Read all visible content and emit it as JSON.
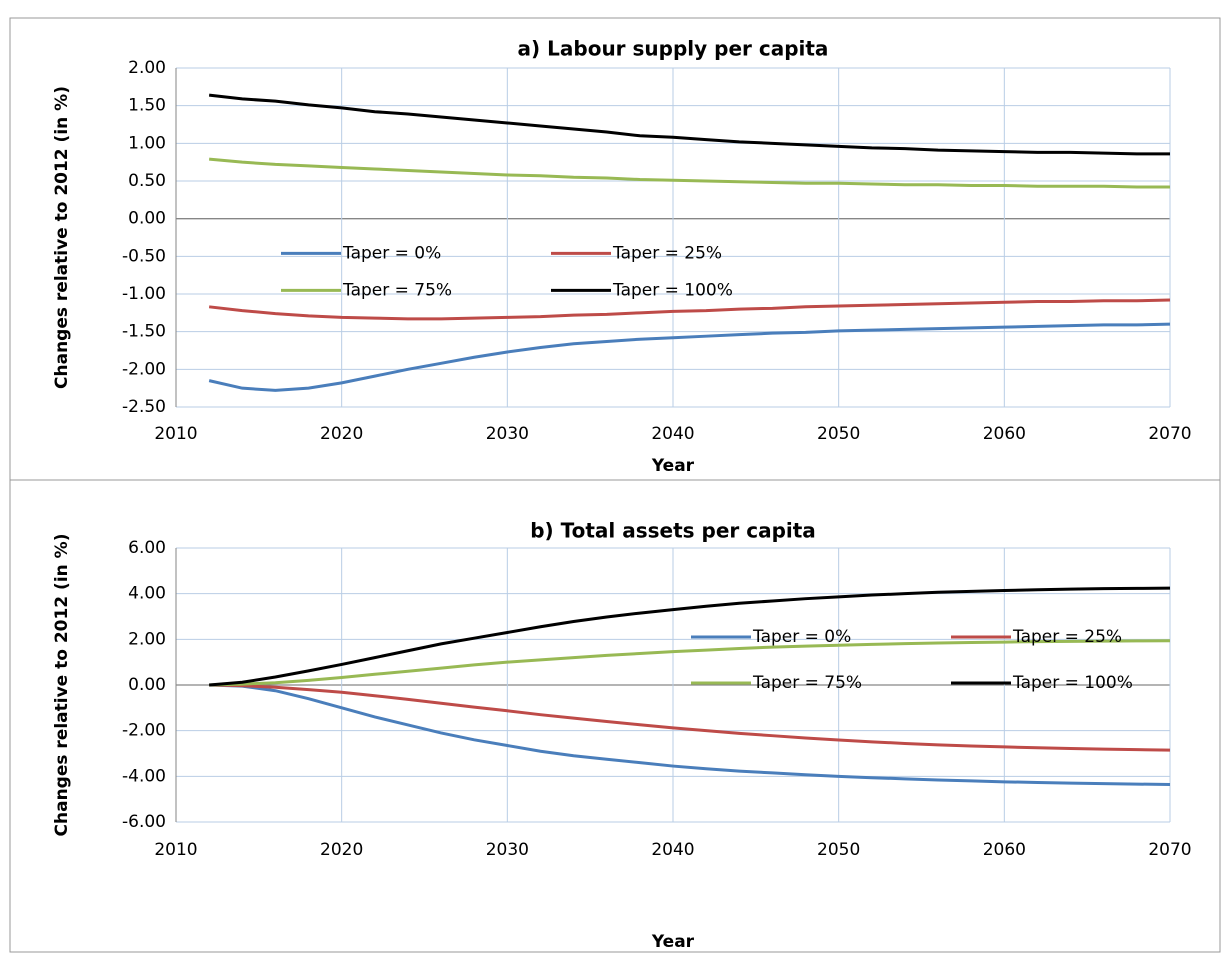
{
  "chart_data": [
    {
      "type": "line",
      "title": "a) Labour supply per capita",
      "x_label": "Year",
      "y_label": "Changes relative to 2012 (in %)",
      "x": [
        2012,
        2014,
        2016,
        2018,
        2020,
        2022,
        2024,
        2026,
        2028,
        2030,
        2032,
        2034,
        2036,
        2038,
        2040,
        2042,
        2044,
        2046,
        2048,
        2050,
        2052,
        2054,
        2056,
        2058,
        2060,
        2062,
        2064,
        2066,
        2068,
        2070
      ],
      "xlim": [
        2010,
        2070
      ],
      "xticks": [
        2010,
        2020,
        2030,
        2040,
        2050,
        2060,
        2070
      ],
      "ylim": [
        -2.5,
        2
      ],
      "yticks": [
        {
          "value": -2.5,
          "label": "-2.50"
        },
        {
          "value": -2,
          "label": "-2.00"
        },
        {
          "value": -1.5,
          "label": "-1.50"
        },
        {
          "value": -1,
          "label": "-1.00"
        },
        {
          "value": -0.5,
          "label": "-0.50"
        },
        {
          "value": 0,
          "label": "0.00"
        },
        {
          "value": 0.5,
          "label": "0.50"
        },
        {
          "value": 1,
          "label": "1.00"
        },
        {
          "value": 1.5,
          "label": "1.50"
        },
        {
          "value": 2,
          "label": "2.00"
        }
      ],
      "grid": true,
      "legend": "center",
      "series": [
        {
          "name": "Taper = 0%",
          "color": "#4a7ebb",
          "values": [
            -2.15,
            -2.25,
            -2.28,
            -2.25,
            -2.18,
            -2.09,
            -2.0,
            -1.92,
            -1.84,
            -1.77,
            -1.71,
            -1.66,
            -1.63,
            -1.6,
            -1.58,
            -1.56,
            -1.54,
            -1.52,
            -1.51,
            -1.49,
            -1.48,
            -1.47,
            -1.46,
            -1.45,
            -1.44,
            -1.43,
            -1.42,
            -1.41,
            -1.41,
            -1.4
          ]
        },
        {
          "name": "Taper = 25%",
          "color": "#be4b48",
          "values": [
            -1.17,
            -1.22,
            -1.26,
            -1.29,
            -1.31,
            -1.32,
            -1.33,
            -1.33,
            -1.32,
            -1.31,
            -1.3,
            -1.28,
            -1.27,
            -1.25,
            -1.23,
            -1.22,
            -1.2,
            -1.19,
            -1.17,
            -1.16,
            -1.15,
            -1.14,
            -1.13,
            -1.12,
            -1.11,
            -1.1,
            -1.1,
            -1.09,
            -1.09,
            -1.08
          ]
        },
        {
          "name": "Taper = 75%",
          "color": "#98b954",
          "values": [
            0.79,
            0.75,
            0.72,
            0.7,
            0.68,
            0.66,
            0.64,
            0.62,
            0.6,
            0.58,
            0.57,
            0.55,
            0.54,
            0.52,
            0.51,
            0.5,
            0.49,
            0.48,
            0.47,
            0.47,
            0.46,
            0.45,
            0.45,
            0.44,
            0.44,
            0.43,
            0.43,
            0.43,
            0.42,
            0.42
          ]
        },
        {
          "name": "Taper = 100%",
          "color": "#000000",
          "values": [
            1.64,
            1.59,
            1.56,
            1.51,
            1.47,
            1.42,
            1.39,
            1.35,
            1.31,
            1.27,
            1.23,
            1.19,
            1.15,
            1.1,
            1.08,
            1.05,
            1.02,
            1.0,
            0.98,
            0.96,
            0.94,
            0.93,
            0.91,
            0.9,
            0.89,
            0.88,
            0.88,
            0.87,
            0.86,
            0.86
          ]
        }
      ]
    },
    {
      "type": "line",
      "title": "b) Total assets per capita",
      "x_label": "Year",
      "y_label": "Changes relative to 2012 (in %)",
      "x": [
        2012,
        2014,
        2016,
        2018,
        2020,
        2022,
        2024,
        2026,
        2028,
        2030,
        2032,
        2034,
        2036,
        2038,
        2040,
        2042,
        2044,
        2046,
        2048,
        2050,
        2052,
        2054,
        2056,
        2058,
        2060,
        2062,
        2064,
        2066,
        2068,
        2070
      ],
      "xlim": [
        2010,
        2070
      ],
      "xticks": [
        2010,
        2020,
        2030,
        2040,
        2050,
        2060,
        2070
      ],
      "ylim": [
        -6,
        6
      ],
      "yticks": [
        {
          "value": -6,
          "label": "-6.00"
        },
        {
          "value": -4,
          "label": "-4.00"
        },
        {
          "value": -2,
          "label": "-2.00"
        },
        {
          "value": 0,
          "label": "0.00"
        },
        {
          "value": 2,
          "label": "2.00"
        },
        {
          "value": 4,
          "label": "4.00"
        },
        {
          "value": 6,
          "label": "6.00"
        }
      ],
      "grid": true,
      "legend": "center-right",
      "series": [
        {
          "name": "Taper = 0%",
          "color": "#4a7ebb",
          "values": [
            0,
            -0.05,
            -0.25,
            -0.6,
            -1.0,
            -1.4,
            -1.75,
            -2.1,
            -2.4,
            -2.65,
            -2.9,
            -3.1,
            -3.25,
            -3.4,
            -3.55,
            -3.67,
            -3.77,
            -3.85,
            -3.93,
            -4.0,
            -4.06,
            -4.11,
            -4.16,
            -4.2,
            -4.24,
            -4.27,
            -4.3,
            -4.32,
            -4.34,
            -4.36
          ]
        },
        {
          "name": "Taper = 25%",
          "color": "#be4b48",
          "values": [
            0,
            -0.03,
            -0.1,
            -0.2,
            -0.32,
            -0.47,
            -0.63,
            -0.8,
            -0.97,
            -1.13,
            -1.3,
            -1.45,
            -1.6,
            -1.74,
            -1.88,
            -2.0,
            -2.12,
            -2.22,
            -2.32,
            -2.41,
            -2.49,
            -2.56,
            -2.62,
            -2.67,
            -2.71,
            -2.75,
            -2.78,
            -2.81,
            -2.83,
            -2.85
          ]
        },
        {
          "name": "Taper = 75%",
          "color": "#98b954",
          "values": [
            0,
            0.04,
            0.1,
            0.2,
            0.33,
            0.47,
            0.6,
            0.74,
            0.88,
            1.0,
            1.1,
            1.2,
            1.3,
            1.38,
            1.46,
            1.53,
            1.6,
            1.66,
            1.7,
            1.74,
            1.78,
            1.81,
            1.84,
            1.86,
            1.88,
            1.9,
            1.91,
            1.92,
            1.93,
            1.94
          ]
        },
        {
          "name": "Taper = 100%",
          "color": "#000000",
          "values": [
            0,
            0.12,
            0.35,
            0.62,
            0.9,
            1.2,
            1.5,
            1.8,
            2.05,
            2.3,
            2.55,
            2.78,
            2.98,
            3.15,
            3.3,
            3.45,
            3.58,
            3.68,
            3.78,
            3.86,
            3.94,
            4.0,
            4.06,
            4.1,
            4.14,
            4.17,
            4.2,
            4.22,
            4.23,
            4.24
          ]
        }
      ]
    }
  ]
}
